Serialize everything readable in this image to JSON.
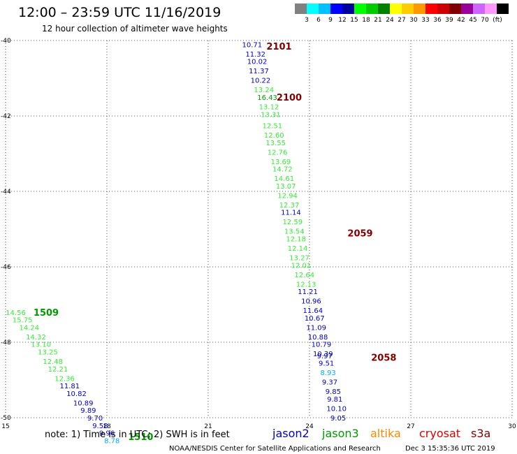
{
  "header": {
    "title": "12:00 – 23:59 UTC 11/16/2019",
    "subtitle": "12 hour collection of altimeter wave heights"
  },
  "colorbar": {
    "colors": [
      "#808080",
      "#00ffff",
      "#00c0ff",
      "#0000ff",
      "#0000a0",
      "#00ff00",
      "#00cc00",
      "#008000",
      "#ffff00",
      "#ffcc00",
      "#ff9900",
      "#ff0000",
      "#cc0000",
      "#800000",
      "#990099",
      "#cc66ff",
      "#ff99ff",
      "#000000"
    ],
    "labels": [
      "3",
      "6",
      "9",
      "12",
      "15",
      "18",
      "21",
      "24",
      "27",
      "30",
      "33",
      "36",
      "39",
      "42",
      "45",
      "70"
    ],
    "unit": "(ft)"
  },
  "note": "note:  1) Time is in UTC; 2) SWH is in feet",
  "footer": {
    "source": "NOAA/NESDIS Center for Satellite Applications and Research",
    "timestamp": "Dec  3 15:35:36 UTC 2019"
  },
  "legend": [
    {
      "name": "jason2",
      "color": "#0000cc"
    },
    {
      "name": "jason3",
      "color": "#009900"
    },
    {
      "name": "altika",
      "color": "#ff8800"
    },
    {
      "name": "cryosat",
      "color": "#dd0000"
    },
    {
      "name": "s3a",
      "color": "#800000"
    }
  ],
  "chart_data": {
    "type": "scatter",
    "xlim": [
      15,
      30
    ],
    "ylim": [
      -50,
      -40
    ],
    "xticks": [
      "15",
      "18",
      "21",
      "24",
      "27",
      "30"
    ],
    "yticks": [
      "-40",
      "-42",
      "-44",
      "-46",
      "-48",
      "-50"
    ],
    "grid": true,
    "series": [
      {
        "name": "track-2100",
        "points": [
          {
            "x": 22.3,
            "y": -40.1,
            "label": "10.71",
            "color": "#0000cc"
          },
          {
            "x": 22.4,
            "y": -40.35,
            "label": "11.32",
            "color": "#0000cc"
          },
          {
            "x": 22.45,
            "y": -40.55,
            "label": "10.02",
            "color": "#0000cc"
          },
          {
            "x": 22.5,
            "y": -40.8,
            "label": "11.37",
            "color": "#0000cc"
          },
          {
            "x": 22.55,
            "y": -41.05,
            "label": "10.22",
            "color": "#0000cc"
          },
          {
            "x": 22.65,
            "y": -41.3,
            "label": "13.24",
            "color": "#33ee33"
          },
          {
            "x": 22.75,
            "y": -41.5,
            "label": "16.43",
            "color": "#009900"
          },
          {
            "x": 22.8,
            "y": -41.75,
            "label": "13.12",
            "color": "#33ee33"
          },
          {
            "x": 22.85,
            "y": -41.95,
            "label": "13.31",
            "color": "#33ee33"
          },
          {
            "x": 22.9,
            "y": -42.25,
            "label": "12.51",
            "color": "#33ee33"
          },
          {
            "x": 22.95,
            "y": -42.5,
            "label": "12.60",
            "color": "#33ee33"
          },
          {
            "x": 23.0,
            "y": -42.7,
            "label": "13.55",
            "color": "#33ee33"
          },
          {
            "x": 23.05,
            "y": -42.95,
            "label": "12.76",
            "color": "#33ee33"
          },
          {
            "x": 23.15,
            "y": -43.2,
            "label": "13.69",
            "color": "#33ee33"
          },
          {
            "x": 23.2,
            "y": -43.4,
            "label": "14.72",
            "color": "#33ee33"
          },
          {
            "x": 23.25,
            "y": -43.65,
            "label": "14.61",
            "color": "#33ee33"
          },
          {
            "x": 23.3,
            "y": -43.85,
            "label": "13.07",
            "color": "#33ee33"
          },
          {
            "x": 23.35,
            "y": -44.1,
            "label": "12.94",
            "color": "#33ee33"
          },
          {
            "x": 23.4,
            "y": -44.35,
            "label": "12.37",
            "color": "#33ee33"
          },
          {
            "x": 23.45,
            "y": -44.55,
            "label": "11.14",
            "color": "#0000cc"
          },
          {
            "x": 23.5,
            "y": -44.8,
            "label": "12.59",
            "color": "#33ee33"
          },
          {
            "x": 23.55,
            "y": -45.05,
            "label": "13.54",
            "color": "#33ee33"
          },
          {
            "x": 23.6,
            "y": -45.25,
            "label": "12.18",
            "color": "#33ee33"
          },
          {
            "x": 23.65,
            "y": -45.5,
            "label": "12.14",
            "color": "#33ee33"
          },
          {
            "x": 23.7,
            "y": -45.75,
            "label": "13.27",
            "color": "#33ee33"
          },
          {
            "x": 23.75,
            "y": -45.95,
            "label": "12.01",
            "color": "#33ee33"
          },
          {
            "x": 23.85,
            "y": -46.2,
            "label": "12.64",
            "color": "#33ee33"
          },
          {
            "x": 23.9,
            "y": -46.45,
            "label": "12.13",
            "color": "#33ee33"
          },
          {
            "x": 23.95,
            "y": -46.65,
            "label": "11.21",
            "color": "#0000cc"
          },
          {
            "x": 24.05,
            "y": -46.9,
            "label": "10.96",
            "color": "#0000cc"
          },
          {
            "x": 24.1,
            "y": -47.15,
            "label": "11.64",
            "color": "#0000cc"
          },
          {
            "x": 24.15,
            "y": -47.35,
            "label": "10.67",
            "color": "#0000cc"
          },
          {
            "x": 24.2,
            "y": -47.6,
            "label": "11.09",
            "color": "#0000cc"
          },
          {
            "x": 24.25,
            "y": -47.85,
            "label": "10.88",
            "color": "#0000cc"
          },
          {
            "x": 24.35,
            "y": -48.05,
            "label": "10.79",
            "color": "#0000cc"
          },
          {
            "x": 24.4,
            "y": -48.3,
            "label": "10.39",
            "color": "#0000cc"
          },
          {
            "x": 24.45,
            "y": -48.35,
            "label": "9.97",
            "color": "#0000cc"
          },
          {
            "x": 24.5,
            "y": -48.55,
            "label": "9.51",
            "color": "#0000cc"
          },
          {
            "x": 24.55,
            "y": -48.8,
            "label": "8.93",
            "color": "#00aaff"
          },
          {
            "x": 24.6,
            "y": -49.05,
            "label": "9.37",
            "color": "#0000cc"
          },
          {
            "x": 24.7,
            "y": -49.3,
            "label": "9.85",
            "color": "#0000cc"
          },
          {
            "x": 24.75,
            "y": -49.5,
            "label": "9.81",
            "color": "#0000cc"
          },
          {
            "x": 24.8,
            "y": -49.75,
            "label": "10.10",
            "color": "#0000cc"
          },
          {
            "x": 24.85,
            "y": -50.0,
            "label": "9.05",
            "color": "#0000cc"
          }
        ]
      },
      {
        "name": "track-1509",
        "points": [
          {
            "x": 15.3,
            "y": -47.2,
            "label": "14.56",
            "color": "#33ee33"
          },
          {
            "x": 15.5,
            "y": -47.4,
            "label": "15.75",
            "color": "#33ee33"
          },
          {
            "x": 15.7,
            "y": -47.6,
            "label": "14.24",
            "color": "#33ee33"
          },
          {
            "x": 15.9,
            "y": -47.85,
            "label": "14.32",
            "color": "#33ee33"
          },
          {
            "x": 16.05,
            "y": -48.05,
            "label": "13.10",
            "color": "#33ee33"
          },
          {
            "x": 16.25,
            "y": -48.25,
            "label": "13.25",
            "color": "#33ee33"
          },
          {
            "x": 16.4,
            "y": -48.5,
            "label": "12.48",
            "color": "#33ee33"
          },
          {
            "x": 16.55,
            "y": -48.7,
            "label": "12.21",
            "color": "#33ee33"
          },
          {
            "x": 16.75,
            "y": -48.95,
            "label": "12.36",
            "color": "#33ee33"
          },
          {
            "x": 16.9,
            "y": -49.15,
            "label": "11.81",
            "color": "#0000cc"
          },
          {
            "x": 17.1,
            "y": -49.35,
            "label": "10.82",
            "color": "#0000cc"
          },
          {
            "x": 17.3,
            "y": -49.6,
            "label": "10.89",
            "color": "#0000cc"
          },
          {
            "x": 17.45,
            "y": -49.8,
            "label": "9.89",
            "color": "#0000cc"
          },
          {
            "x": 17.65,
            "y": -50.0,
            "label": "9.70",
            "color": "#0000cc"
          },
          {
            "x": 17.8,
            "y": -50.2,
            "label": "9.58",
            "color": "#0000cc"
          },
          {
            "x": 18.0,
            "y": -50.4,
            "label": "9.96",
            "color": "#0000cc"
          },
          {
            "x": 18.15,
            "y": -50.6,
            "label": "8.78",
            "color": "#00aaff"
          }
        ]
      }
    ],
    "annotations": [
      {
        "x": 23.1,
        "y": -40.15,
        "text": "2101",
        "color": "#800000"
      },
      {
        "x": 23.4,
        "y": -41.5,
        "text": "2100",
        "color": "#800000"
      },
      {
        "x": 25.5,
        "y": -45.1,
        "text": "2059",
        "color": "#800000"
      },
      {
        "x": 26.2,
        "y": -48.4,
        "text": "2058",
        "color": "#800000"
      },
      {
        "x": 16.2,
        "y": -47.2,
        "text": "1509",
        "color": "#009900"
      },
      {
        "x": 19.0,
        "y": -50.5,
        "text": "1510",
        "color": "#009900"
      }
    ]
  }
}
